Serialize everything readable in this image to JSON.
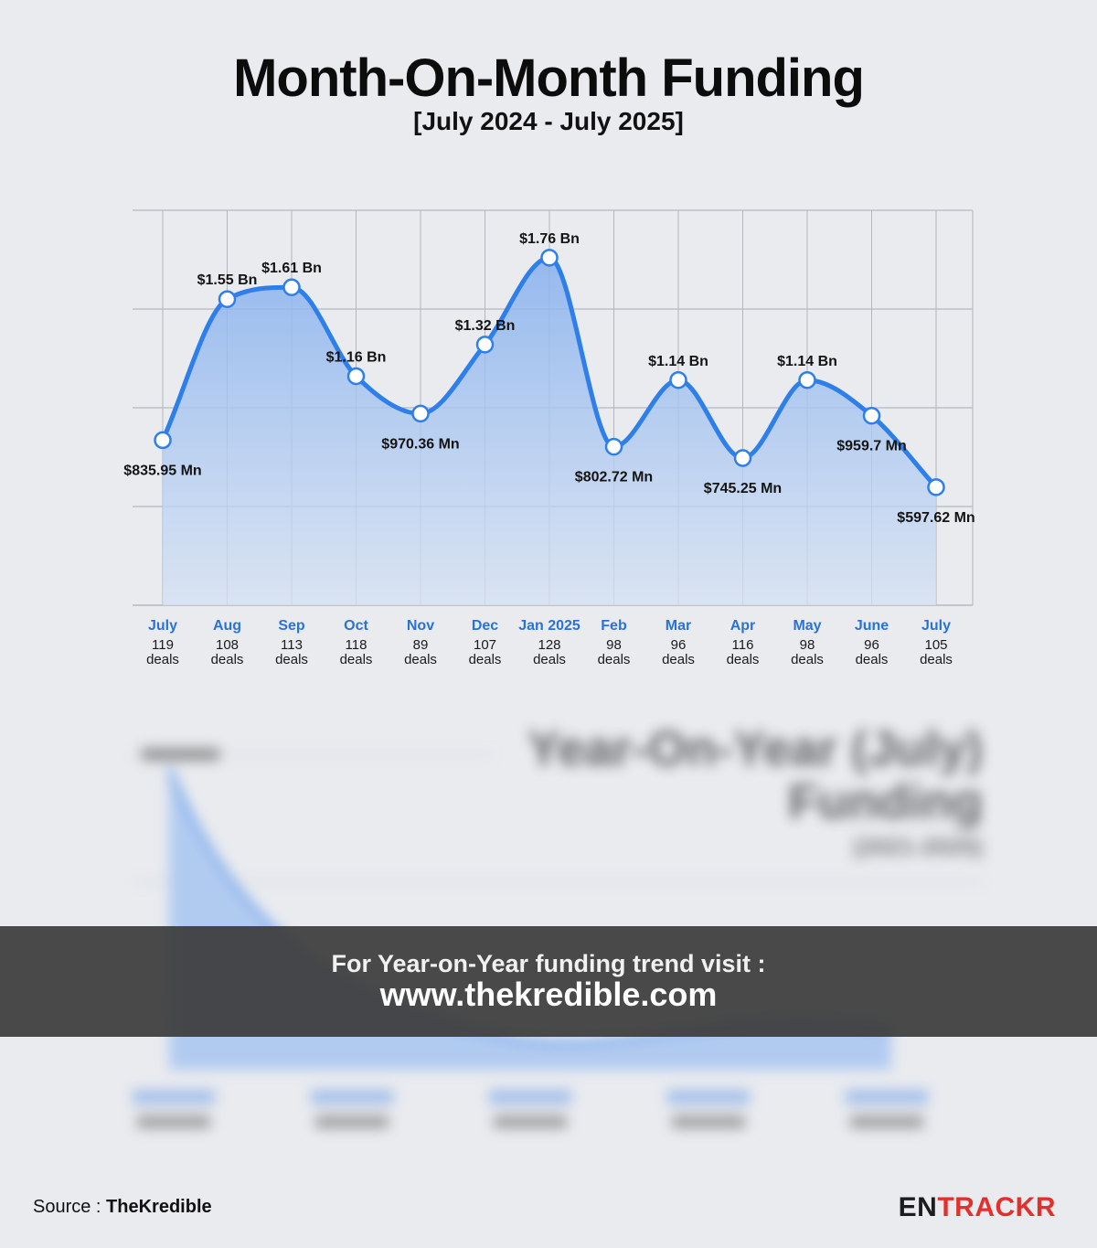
{
  "title": "Month-On-Month Funding",
  "subtitle": "[July 2024 - July 2025]",
  "banner": {
    "line1": "For Year-on-Year funding trend visit :",
    "line2": "www.thekredible.com"
  },
  "footer": {
    "source_label": "Source : ",
    "source_name": "TheKredible",
    "brand_part1": "EN",
    "brand_part2": "TRACKR"
  },
  "blurred_section": {
    "title_line1": "Year-On-Year (July)",
    "title_line2": "Funding",
    "subtitle": "(2021-2025)"
  },
  "colors": {
    "line": "#2f7fea",
    "area_top": "#8fb6ee",
    "month_label": "#2a73d6",
    "brand_red": "#e0312e"
  },
  "chart_data": {
    "type": "area",
    "categories": [
      "July",
      "Aug",
      "Sep",
      "Oct",
      "Nov",
      "Dec",
      "Jan 2025",
      "Feb",
      "Mar",
      "Apr",
      "May",
      "June",
      "July"
    ],
    "deals": [
      "119",
      "108",
      "113",
      "118",
      "89",
      "107",
      "128",
      "98",
      "96",
      "116",
      "98",
      "96",
      "105"
    ],
    "deals_unit": "deals",
    "values_mn": [
      835.95,
      1550,
      1610,
      1160,
      970.36,
      1320,
      1760,
      802.72,
      1140,
      745.25,
      1140,
      959.7,
      597.62
    ],
    "data_labels": [
      "$835.95 Mn",
      "$1.55 Bn",
      "$1.61 Bn",
      "$1.16 Bn",
      "$970.36 Mn",
      "$1.32 Bn",
      "$1.76 Bn",
      "$802.72 Mn",
      "$1.14 Bn",
      "$745.25 Mn",
      "$1.14 Bn",
      "$959.7 Mn",
      "$597.62 Mn"
    ],
    "label_position": [
      "below",
      "above",
      "above",
      "above",
      "below",
      "above",
      "above",
      "below",
      "above",
      "below",
      "above",
      "below",
      "below"
    ],
    "ylim": [
      0,
      2000
    ],
    "grid": true,
    "legend": "none"
  }
}
